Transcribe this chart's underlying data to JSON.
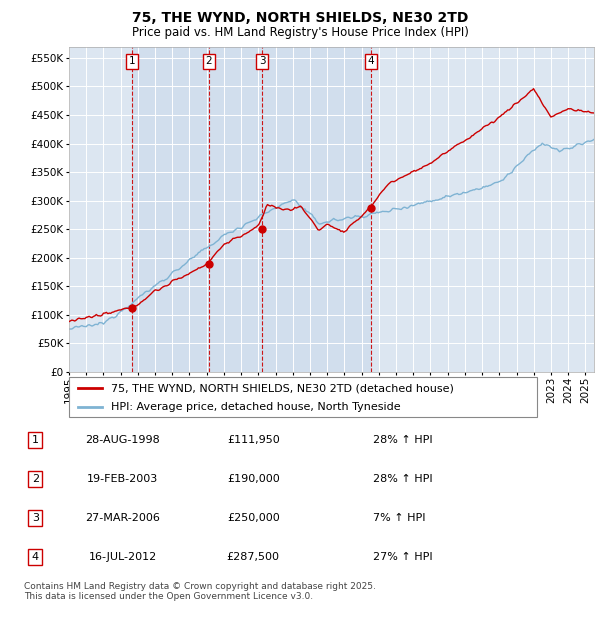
{
  "title": "75, THE WYND, NORTH SHIELDS, NE30 2TD",
  "subtitle": "Price paid vs. HM Land Registry's House Price Index (HPI)",
  "ylim": [
    0,
    570000
  ],
  "yticks": [
    0,
    50000,
    100000,
    150000,
    200000,
    250000,
    300000,
    350000,
    400000,
    450000,
    500000,
    550000
  ],
  "xlim_start": 1995,
  "xlim_end": 2025.5,
  "background_color": "#dce6f1",
  "shaded_region_color": "#c5d8ee",
  "grid_color": "#ffffff",
  "sale_color": "#cc0000",
  "hpi_color": "#7fb3d3",
  "sale_label": "75, THE WYND, NORTH SHIELDS, NE30 2TD (detached house)",
  "hpi_label": "HPI: Average price, detached house, North Tyneside",
  "transactions": [
    {
      "num": 1,
      "date": "28-AUG-1998",
      "price": 111950,
      "pct": "28%",
      "dir": "↑",
      "x_year": 1998.65
    },
    {
      "num": 2,
      "date": "19-FEB-2003",
      "price": 190000,
      "pct": "28%",
      "dir": "↑",
      "x_year": 2003.12
    },
    {
      "num": 3,
      "date": "27-MAR-2006",
      "price": 250000,
      "pct": "7%",
      "dir": "↑",
      "x_year": 2006.23
    },
    {
      "num": 4,
      "date": "16-JUL-2012",
      "price": 287500,
      "pct": "27%",
      "dir": "↑",
      "x_year": 2012.54
    }
  ],
  "footer": "Contains HM Land Registry data © Crown copyright and database right 2025.\nThis data is licensed under the Open Government Licence v3.0.",
  "title_fontsize": 10,
  "subtitle_fontsize": 8.5,
  "tick_fontsize": 7.5,
  "legend_fontsize": 8,
  "table_fontsize": 8,
  "footer_fontsize": 6.5
}
